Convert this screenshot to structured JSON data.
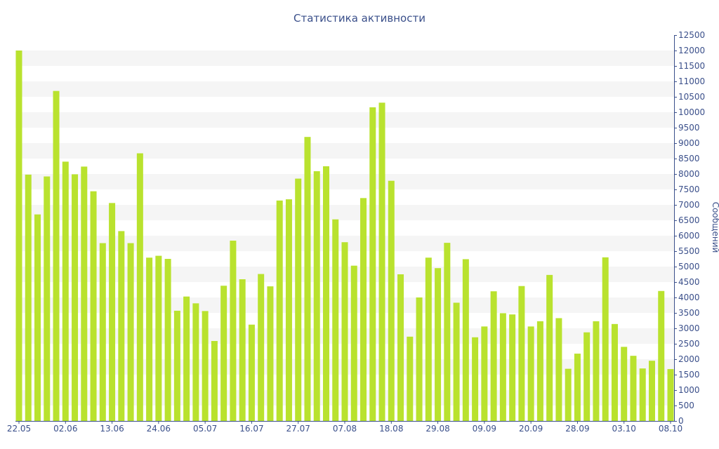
{
  "chart_data": {
    "type": "bar",
    "title": "Статистика активности",
    "xlabel": "",
    "ylabel": "Сообщений",
    "y_axis_side": "right",
    "ylim": [
      0,
      12500
    ],
    "y_ticks": [
      0,
      500,
      1000,
      1500,
      2000,
      2500,
      3000,
      3500,
      4000,
      4500,
      5000,
      5500,
      6000,
      6500,
      7000,
      7500,
      8000,
      8500,
      9000,
      9500,
      10000,
      10500,
      11000,
      11500,
      12000,
      12500
    ],
    "x_ticks": [
      {
        "index": 0,
        "label": "22.05"
      },
      {
        "index": 5,
        "label": "02.06"
      },
      {
        "index": 10,
        "label": "13.06"
      },
      {
        "index": 15,
        "label": "24.06"
      },
      {
        "index": 20,
        "label": "05.07"
      },
      {
        "index": 25,
        "label": "16.07"
      },
      {
        "index": 30,
        "label": "27.07"
      },
      {
        "index": 35,
        "label": "07.08"
      },
      {
        "index": 40,
        "label": "18.08"
      },
      {
        "index": 45,
        "label": "29.08"
      },
      {
        "index": 50,
        "label": "09.09"
      },
      {
        "index": 55,
        "label": "20.09"
      },
      {
        "index": 60,
        "label": "28.09"
      },
      {
        "index": 65,
        "label": "03.10"
      },
      {
        "index": 70,
        "label": "08.10"
      }
    ],
    "values": [
      12000,
      7980,
      6690,
      7920,
      10690,
      8400,
      7990,
      8240,
      7440,
      5760,
      7060,
      6150,
      5760,
      8670,
      5290,
      5350,
      5250,
      3570,
      4030,
      3810,
      3560,
      2590,
      4380,
      5840,
      4590,
      3120,
      4760,
      4360,
      7140,
      7180,
      7850,
      9200,
      8090,
      8250,
      6530,
      5790,
      5030,
      7220,
      10160,
      10310,
      7780,
      4750,
      2730,
      4000,
      5290,
      4950,
      5770,
      3830,
      5240,
      2710,
      3060,
      4200,
      3490,
      3450,
      4370,
      3060,
      3230,
      4730,
      3330,
      1690,
      2180,
      2870,
      3230,
      5300,
      3140,
      2400,
      2110,
      1700,
      1950,
      4210,
      1680
    ],
    "grid": true,
    "bar_color": "#b9e22e",
    "band_color": "#f5f5f5",
    "text_color": "#3a4f8a"
  }
}
